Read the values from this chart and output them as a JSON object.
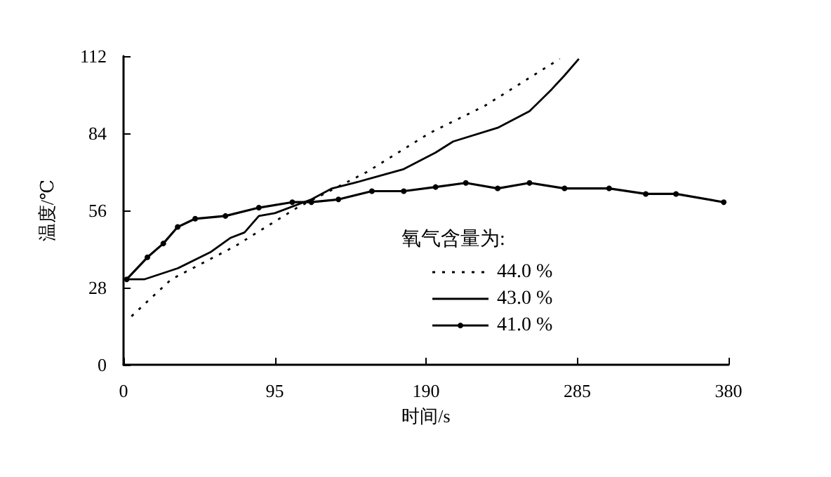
{
  "chart_data": {
    "type": "line",
    "xlabel": "时间/s",
    "ylabel": "温度/℃",
    "legend_title": "氧气含量为:",
    "xlim": [
      0,
      380
    ],
    "xticks": [
      0,
      95,
      190,
      285,
      380
    ],
    "ylim": [
      0,
      112
    ],
    "yticks": [
      0,
      28,
      56,
      84,
      112
    ],
    "grid": false,
    "legend": "right",
    "series": [
      {
        "name": "44.0 %",
        "color": "#000000",
        "line_style": "dotted",
        "marker": "none",
        "x": [
          5,
          30,
          70,
          109,
          153,
          192,
          227,
          274
        ],
        "values": [
          17.6,
          31,
          43,
          57,
          70,
          84,
          94,
          111
        ]
      },
      {
        "name": "43.0 %",
        "color": "#000000",
        "line_style": "solid",
        "marker": "none",
        "x": [
          2,
          13,
          34,
          55,
          67,
          76,
          85,
          95,
          118,
          131,
          145,
          176,
          196,
          207,
          235,
          255,
          269,
          277,
          286
        ],
        "values": [
          31,
          31,
          35,
          41,
          46,
          48,
          54,
          55,
          60,
          64,
          66,
          71,
          77,
          81,
          86,
          92,
          100,
          105,
          111
        ]
      },
      {
        "name": "41.0 %",
        "color": "#000000",
        "line_style": "solid",
        "marker": "circle",
        "x": [
          2,
          15,
          25,
          34,
          45,
          64,
          85,
          106,
          118,
          135,
          156,
          176,
          196,
          215,
          235,
          255,
          277,
          305,
          328,
          347,
          377
        ],
        "values": [
          31,
          39,
          44,
          50,
          53,
          54,
          57,
          59,
          59,
          60,
          63,
          63,
          64.5,
          66,
          64,
          66,
          64,
          64,
          62,
          62,
          59
        ]
      }
    ]
  }
}
